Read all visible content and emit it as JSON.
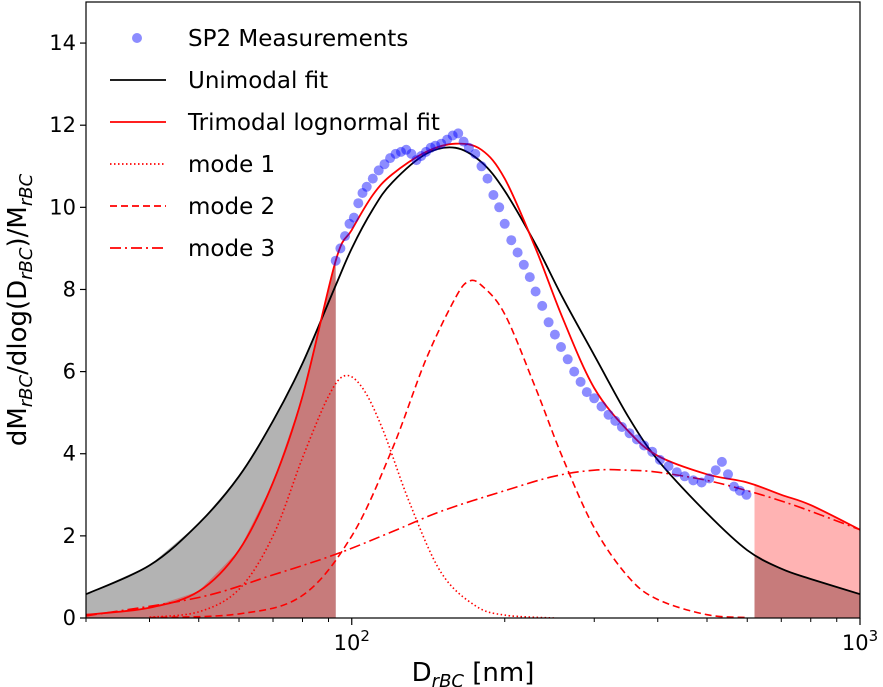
{
  "chart_data": {
    "type": "line",
    "x_scale": "log",
    "xlim": [
      30,
      1000
    ],
    "ylim": [
      0,
      15
    ],
    "grid": false,
    "legend_placement": "top-left",
    "xlabel": {
      "base": "D",
      "sub": "rBC",
      "rest": " [nm]"
    },
    "ylabel": {
      "parts": [
        {
          "text": "dM",
          "sub": false
        },
        {
          "text": "rBC",
          "sub": true
        },
        {
          "text": "/dlog(D",
          "sub": false
        },
        {
          "text": "rBC",
          "sub": true
        },
        {
          "text": ")/M",
          "sub": false
        },
        {
          "text": "rBC",
          "sub": true
        }
      ]
    },
    "x_ticks": [
      {
        "value": 100,
        "base": "10",
        "exp": "2"
      },
      {
        "value": 1000,
        "base": "10",
        "exp": "3"
      }
    ],
    "y_ticks": [
      {
        "value": 0,
        "label": "0"
      },
      {
        "value": 2,
        "label": "2"
      },
      {
        "value": 4,
        "label": "4"
      },
      {
        "value": 6,
        "label": "6"
      },
      {
        "value": 8,
        "label": "8"
      },
      {
        "value": 10,
        "label": "10"
      },
      {
        "value": 12,
        "label": "12"
      },
      {
        "value": 14,
        "label": "14"
      }
    ],
    "shaded_regions": [
      {
        "x_range": [
          30,
          93
        ],
        "curve": "unimodal",
        "color": "#b3b3b3"
      },
      {
        "x_range": [
          30,
          93
        ],
        "curve": "trimodal",
        "color": "#c77b7b"
      },
      {
        "x_range": [
          620,
          1000
        ],
        "curve": "trimodal",
        "color": "#ffb3b3"
      },
      {
        "x_range": [
          620,
          1000
        ],
        "curve": "unimodal",
        "color": "#c77b7b"
      }
    ],
    "legend": [
      {
        "label": "SP2 Measurements",
        "style": "marker",
        "color": "#0000ff"
      },
      {
        "label": "Unimodal fit",
        "style": "solid",
        "color": "#000000"
      },
      {
        "label": "Trimodal lognormal fit",
        "style": "solid",
        "color": "#ff0000"
      },
      {
        "label": "mode 1",
        "style": "dotted",
        "color": "#ff0000"
      },
      {
        "label": "mode 2",
        "style": "dashed",
        "color": "#ff0000"
      },
      {
        "label": "mode 3",
        "style": "dashdot",
        "color": "#ff0000"
      }
    ],
    "series": [
      {
        "name": "Unimodal fit",
        "kind": "curve",
        "color": "#000000",
        "style": "solid",
        "x": [
          30,
          40,
          50,
          60,
          70,
          80,
          93,
          100,
          110,
          120,
          140,
          160,
          180,
          200,
          230,
          260,
          300,
          350,
          400,
          500,
          600,
          700,
          800,
          1000
        ],
        "y": [
          0.58,
          1.28,
          2.3,
          3.45,
          4.8,
          6.2,
          8.1,
          9.0,
          9.95,
          10.6,
          11.3,
          11.45,
          11.1,
          10.4,
          9.1,
          7.8,
          6.4,
          4.9,
          3.85,
          2.55,
          1.65,
          1.2,
          0.95,
          0.58
        ]
      },
      {
        "name": "Trimodal lognormal fit",
        "kind": "curve",
        "color": "#ff0000",
        "style": "solid",
        "x": [
          30,
          40,
          50,
          60,
          70,
          80,
          93,
          100,
          110,
          120,
          140,
          160,
          180,
          200,
          230,
          260,
          300,
          350,
          400,
          500,
          600,
          700,
          800,
          1000
        ],
        "y": [
          0.08,
          0.25,
          0.65,
          1.65,
          3.3,
          5.4,
          8.7,
          9.45,
          10.3,
          10.8,
          11.35,
          11.55,
          11.4,
          10.7,
          9.0,
          7.3,
          5.6,
          4.55,
          3.95,
          3.5,
          3.3,
          3.0,
          2.75,
          2.15
        ]
      },
      {
        "name": "mode 1",
        "kind": "curve",
        "color": "#ff0000",
        "style": "dotted",
        "x": [
          40,
          50,
          60,
          70,
          80,
          90,
          97,
          105,
          115,
          130,
          150,
          175,
          200,
          250
        ],
        "y": [
          0.02,
          0.15,
          0.7,
          2.0,
          3.9,
          5.4,
          5.9,
          5.6,
          4.6,
          2.8,
          1.1,
          0.3,
          0.07,
          0.0
        ]
      },
      {
        "name": "mode 2",
        "kind": "curve",
        "color": "#ff0000",
        "style": "dashed",
        "x": [
          40,
          60,
          80,
          100,
          120,
          140,
          160,
          170,
          180,
          200,
          230,
          260,
          300,
          350,
          400,
          500,
          600
        ],
        "y": [
          0.01,
          0.1,
          0.55,
          2.0,
          4.1,
          6.3,
          7.8,
          8.2,
          8.1,
          7.4,
          5.6,
          3.9,
          2.2,
          1.0,
          0.45,
          0.08,
          0.01
        ]
      },
      {
        "name": "mode 3",
        "kind": "curve",
        "color": "#ff0000",
        "style": "dashdot",
        "x": [
          30,
          50,
          70,
          93,
          120,
          150,
          200,
          250,
          300,
          350,
          400,
          500,
          600,
          700,
          800,
          1000
        ],
        "y": [
          0.05,
          0.5,
          1.05,
          1.55,
          2.1,
          2.6,
          3.1,
          3.45,
          3.6,
          3.6,
          3.55,
          3.35,
          3.1,
          2.85,
          2.6,
          2.15
        ]
      },
      {
        "name": "SP2 Measurements",
        "kind": "scatter",
        "color": "#0000ff",
        "opacity": 0.45,
        "x": [
          93,
          95,
          97,
          99,
          101,
          103,
          105,
          107,
          110,
          113,
          116,
          119,
          122,
          125,
          128,
          131,
          134,
          137,
          140,
          143,
          146,
          150,
          154,
          158,
          162,
          166,
          170,
          175,
          180,
          185,
          190,
          195,
          200,
          206,
          212,
          218,
          224,
          230,
          237,
          244,
          251,
          258,
          266,
          274,
          282,
          290,
          300,
          310,
          320,
          330,
          340,
          352,
          364,
          376,
          390,
          404,
          420,
          436,
          452,
          470,
          488,
          505,
          520,
          535,
          550,
          565,
          580,
          598
        ],
        "y": [
          8.7,
          9.0,
          9.3,
          9.6,
          9.75,
          10.1,
          10.35,
          10.5,
          10.7,
          10.9,
          11.05,
          11.2,
          11.3,
          11.35,
          11.4,
          11.3,
          11.15,
          11.25,
          11.35,
          11.45,
          11.5,
          11.55,
          11.65,
          11.75,
          11.8,
          11.6,
          11.45,
          11.3,
          11.0,
          10.7,
          10.3,
          10.0,
          9.6,
          9.2,
          8.9,
          8.6,
          8.3,
          7.95,
          7.6,
          7.2,
          6.9,
          6.6,
          6.3,
          6.0,
          5.75,
          5.5,
          5.35,
          5.15,
          4.95,
          4.8,
          4.65,
          4.5,
          4.35,
          4.2,
          4.05,
          3.85,
          3.7,
          3.55,
          3.45,
          3.35,
          3.3,
          3.4,
          3.6,
          3.8,
          3.5,
          3.2,
          3.1,
          3.0
        ]
      }
    ]
  }
}
